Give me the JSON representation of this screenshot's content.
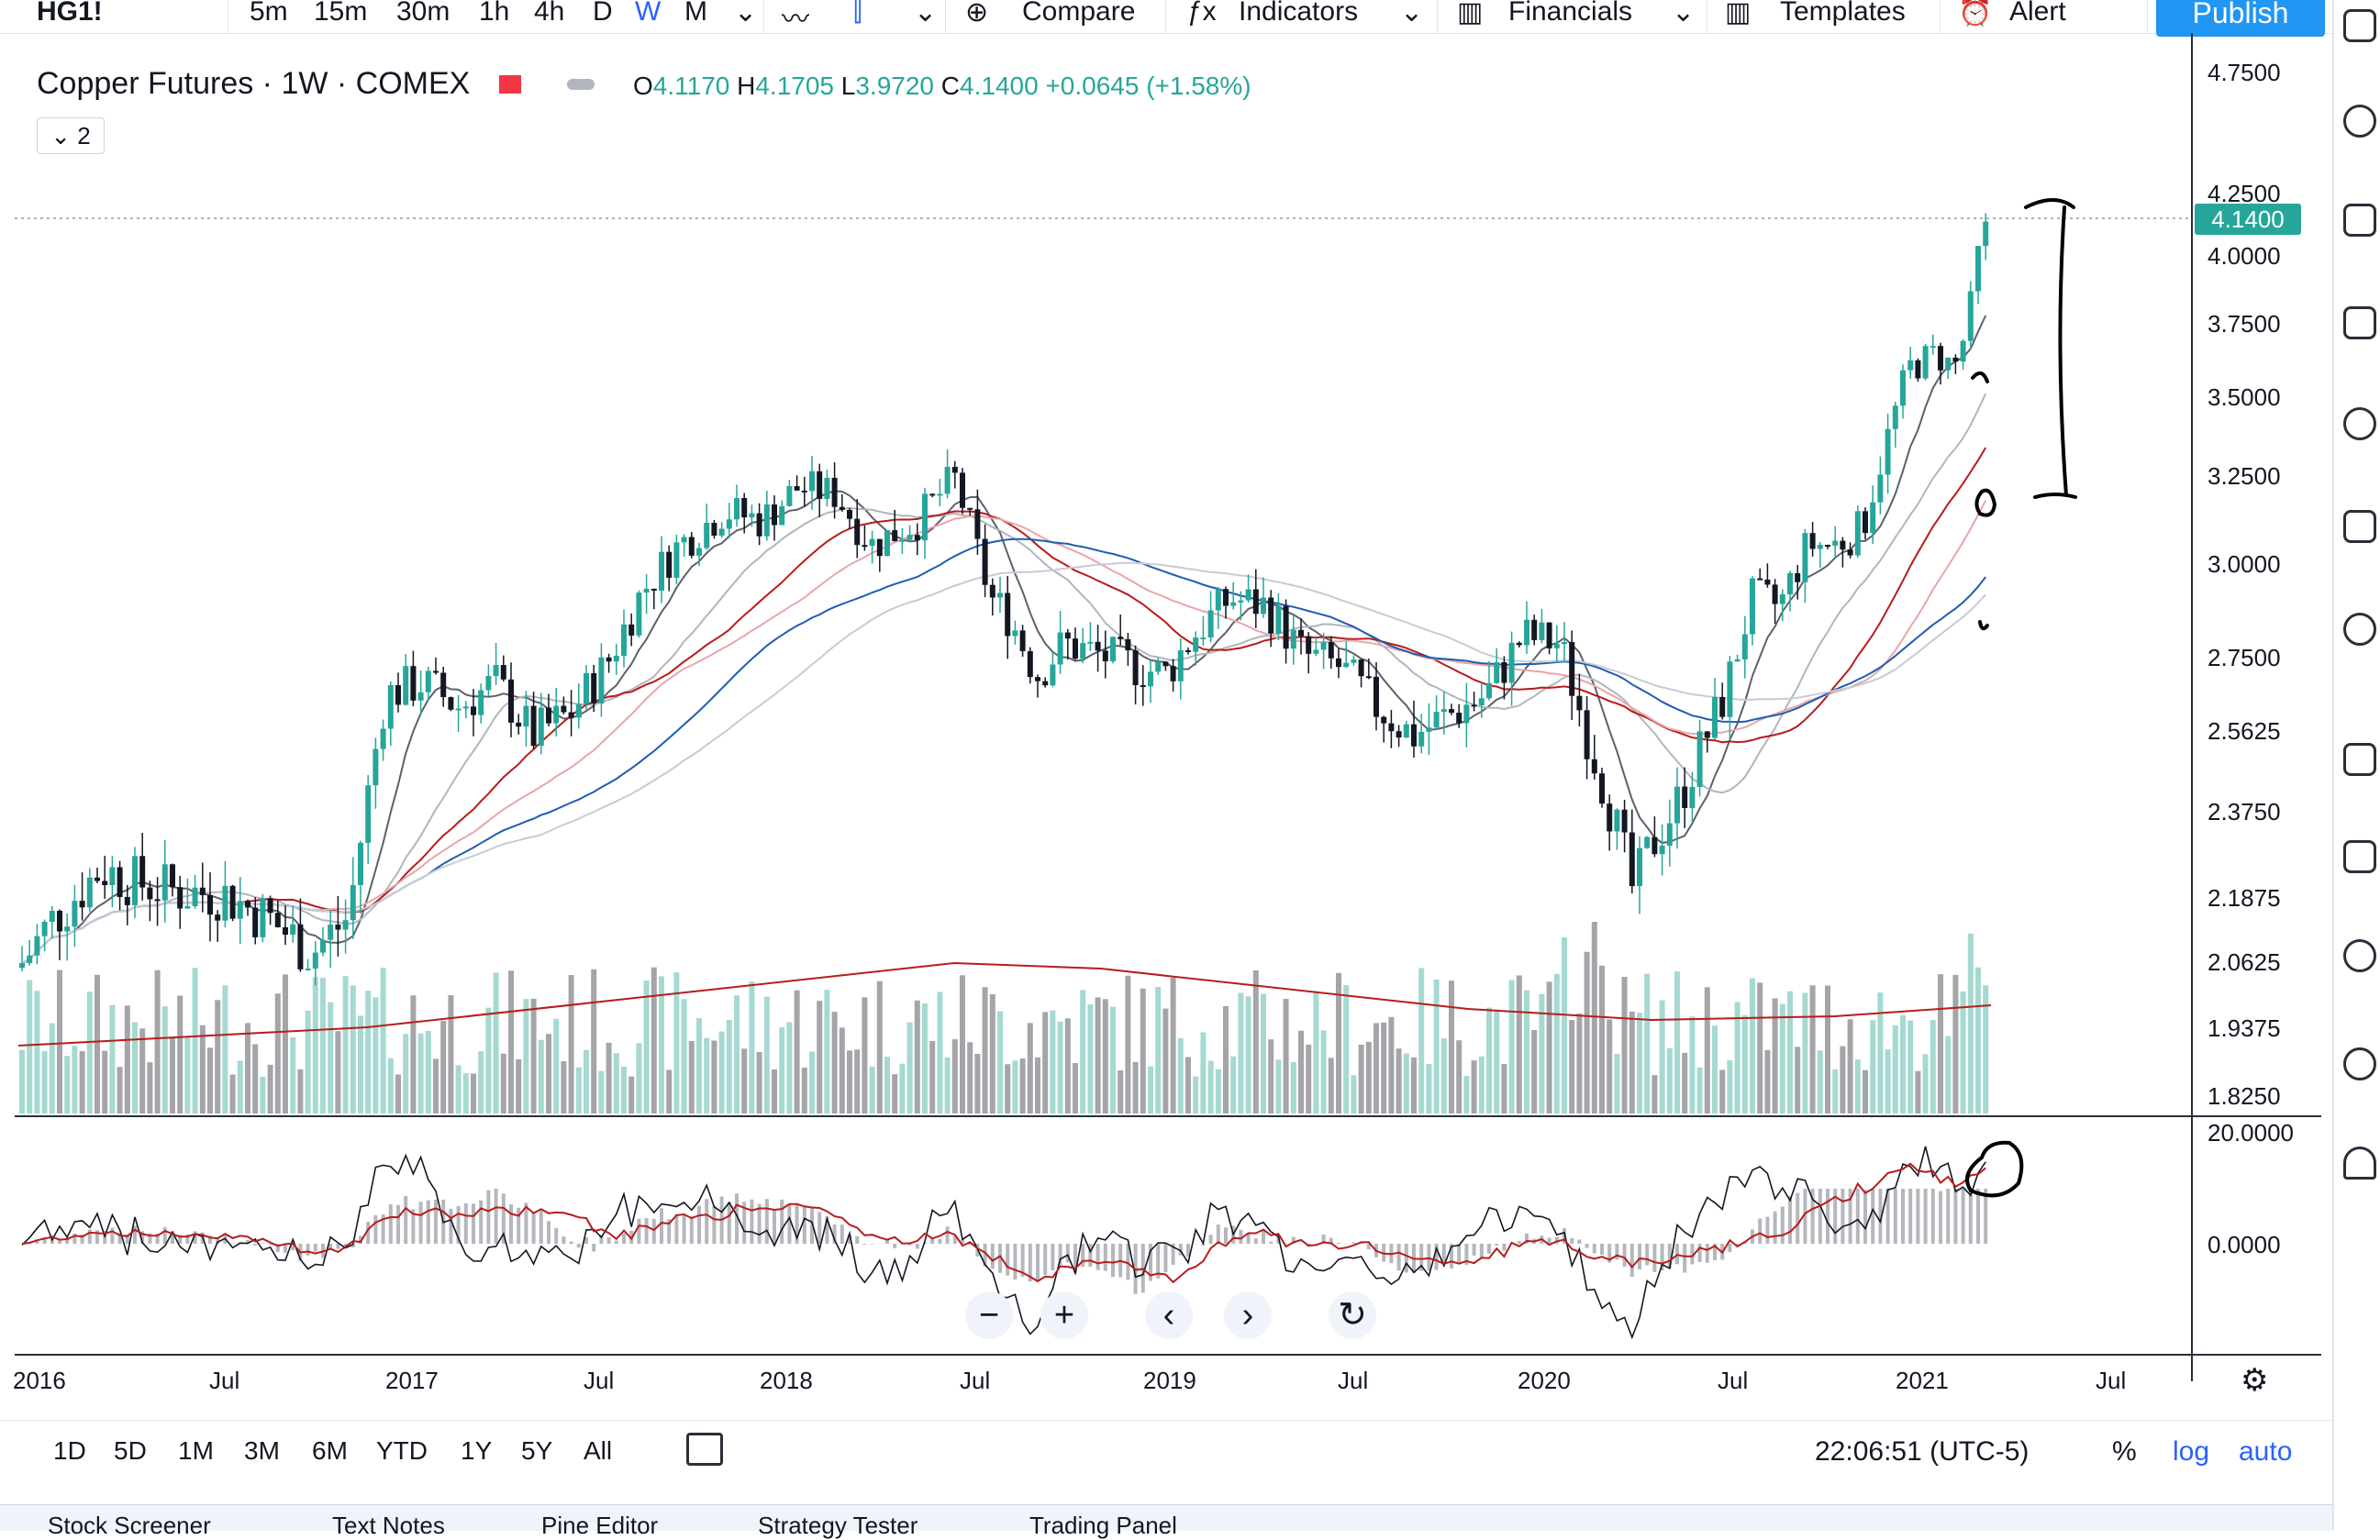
{
  "toolbar": {
    "symbol": "HG1!",
    "intervals": [
      "5m",
      "15m",
      "30m",
      "1h",
      "4h",
      "D",
      "W",
      "M"
    ],
    "active_interval": "W",
    "compare": "Compare",
    "indicators": "Indicators",
    "financials": "Financials",
    "templates": "Templates",
    "alert": "Alert",
    "publish": "Publish",
    "chevron": "⌄",
    "plus": "⊕",
    "fx": "ƒx",
    "bars": "▥",
    "alarm": "⏰",
    "wave": "〰",
    "candles": "⫿"
  },
  "legend": {
    "title": "Copper Futures · 1W · COMEX",
    "open_label": "O",
    "open": "4.1170",
    "high_label": "H",
    "high": "4.1705",
    "low_label": "L",
    "low": "3.9720",
    "close_label": "C",
    "close": "4.1400",
    "change": "+0.0645 (+1.58%)",
    "collapse": "⌄ 2",
    "accent_color": "#26a69a",
    "flag_color": "#f23645"
  },
  "price_axis": {
    "ticks": [
      "4.7500",
      "4.2500",
      "4.0000",
      "3.7500",
      "3.5000",
      "3.2500",
      "3.0000",
      "2.7500",
      "2.5625",
      "2.3750",
      "2.1875",
      "2.0625",
      "1.9375",
      "1.8250"
    ],
    "last_price": "4.1400"
  },
  "osc_axis": {
    "ticks": [
      "20.0000",
      "0.0000"
    ]
  },
  "time_axis": {
    "ticks": [
      "2016",
      "Jul",
      "2017",
      "Jul",
      "2018",
      "Jul",
      "2019",
      "Jul",
      "2020",
      "Jul",
      "2021",
      "Jul"
    ]
  },
  "nav": {
    "zoom_out": "−",
    "zoom_in": "+",
    "back": "‹",
    "forward": "›",
    "reset": "↻"
  },
  "bottom": {
    "ranges": [
      "1D",
      "5D",
      "1M",
      "3M",
      "6M",
      "YTD",
      "1Y",
      "5Y",
      "All"
    ],
    "date_range_icon": "calendar-icon",
    "clock": "22:06:51 (UTC-5)",
    "percent": "%",
    "log": "log",
    "auto": "auto",
    "gear": "⚙"
  },
  "footer_tabs": [
    "Stock Screener",
    "Text Notes",
    "Pine Editor",
    "Strategy Tester",
    "Trading Panel"
  ]
}
